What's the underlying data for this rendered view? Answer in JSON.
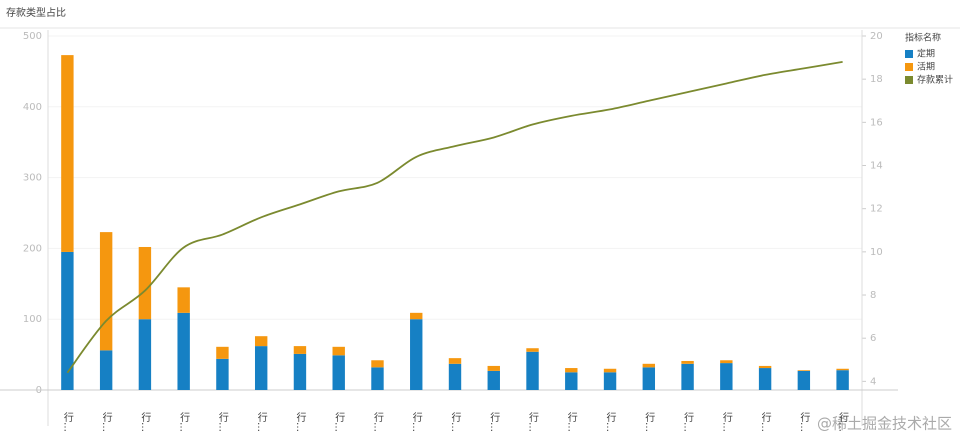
{
  "chart_data": {
    "type": "bar",
    "title": "存款类型占比",
    "legend_title": "指标名称",
    "legend_position": "right",
    "grid": true,
    "watermark": "@稀土掘金技术社区",
    "categories": [
      "行…",
      "行…",
      "行…",
      "行…",
      "行…",
      "行…",
      "行…",
      "行…",
      "行…",
      "行…",
      "行…",
      "行…",
      "行…",
      "行…",
      "行…",
      "行…",
      "行…",
      "行…",
      "行…",
      "行…",
      "行…"
    ],
    "ylim": [
      0,
      500
    ],
    "yticks": [
      0,
      100,
      200,
      300,
      400,
      500
    ],
    "y2lim": [
      3.6,
      20
    ],
    "y2ticks": [
      4,
      6,
      8,
      10,
      12,
      14,
      16,
      18,
      20
    ],
    "series": [
      {
        "name": "定期",
        "color": "#1680c4",
        "stack": true,
        "values": [
          195,
          56,
          100,
          109,
          44,
          62,
          51,
          49,
          32,
          100,
          37,
          27,
          54,
          25,
          25,
          32,
          37,
          38,
          31,
          27,
          28
        ]
      },
      {
        "name": "活期",
        "color": "#f5970f",
        "stack": true,
        "values": [
          278,
          167,
          102,
          36,
          17,
          14,
          11,
          12,
          10,
          9,
          8,
          7,
          5,
          6,
          5,
          5,
          4,
          4,
          3,
          1,
          2
        ]
      },
      {
        "name": "存款累计",
        "color": "#7b8a2f",
        "type": "line",
        "axis": "y2",
        "values": [
          4.4,
          6.8,
          8.2,
          10.2,
          10.8,
          11.6,
          12.2,
          12.8,
          13.2,
          14.4,
          14.9,
          15.3,
          15.9,
          16.3,
          16.6,
          17.0,
          17.4,
          17.8,
          18.2,
          18.5,
          18.8
        ]
      }
    ]
  }
}
